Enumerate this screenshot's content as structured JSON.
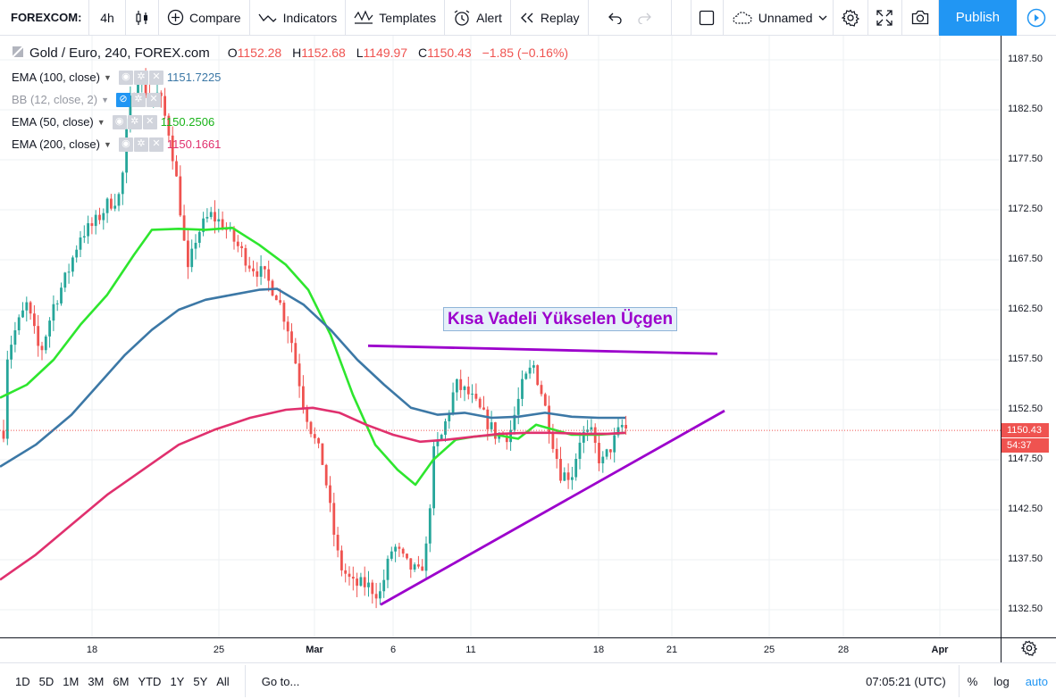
{
  "toolbar": {
    "symbol": "FOREXCOM:",
    "interval": "4h",
    "compare": "Compare",
    "indicators": "Indicators",
    "templates": "Templates",
    "alert": "Alert",
    "replay": "Replay",
    "layout_name": "Unnamed",
    "publish": "Publish"
  },
  "legend": {
    "title": "Gold / Euro, 240, FOREX.com",
    "open_label": "O",
    "open": "1152.28",
    "high_label": "H",
    "high": "1152.68",
    "low_label": "L",
    "low": "1149.97",
    "close_label": "C",
    "close": "1150.43",
    "change": "−1.85 (−0.16%)",
    "indicators": [
      {
        "name": "EMA (100, close)",
        "value": "1151.7225",
        "color": "#3c78a6",
        "visible": true
      },
      {
        "name": "BB (12, close, 2)",
        "value": "",
        "color": "#9598a1",
        "visible": false
      },
      {
        "name": "EMA (50, close)",
        "value": "1150.2506",
        "color": "#2ee62e",
        "visible": true
      },
      {
        "name": "EMA (200, close)",
        "value": "1150.1661",
        "color": "#e0306e",
        "visible": true
      }
    ]
  },
  "annotation": {
    "text": "Kısa Vadeli Yükselen Üçgen",
    "color": "#9c00cc"
  },
  "price_axis": {
    "labels": [
      "1187.50",
      "1182.50",
      "1177.50",
      "1172.50",
      "1167.50",
      "1162.50",
      "1157.50",
      "1152.50",
      "1147.50",
      "1142.50",
      "1137.50",
      "1132.50"
    ],
    "last_price": "1150.43",
    "countdown": "54:37"
  },
  "time_axis": {
    "labels": [
      "18",
      "25",
      "Mar",
      "6",
      "11",
      "18",
      "21",
      "25",
      "28",
      "Apr"
    ]
  },
  "bottom_bar": {
    "ranges": [
      "1D",
      "5D",
      "1M",
      "3M",
      "6M",
      "YTD",
      "1Y",
      "5Y",
      "All"
    ],
    "goto": "Go to...",
    "clock": "07:05:21 (UTC)",
    "percent": "%",
    "log": "log",
    "auto": "auto"
  },
  "chart_data": {
    "type": "candlestick",
    "ylim": [
      1131,
      1190
    ],
    "up_color": "#26a69a",
    "down_color": "#ef5350",
    "lines": {
      "ema100_color": "#3c78a6",
      "ema50_color": "#2ee62e",
      "ema200_color": "#e0306e",
      "trendline_color": "#9c00cc"
    }
  }
}
